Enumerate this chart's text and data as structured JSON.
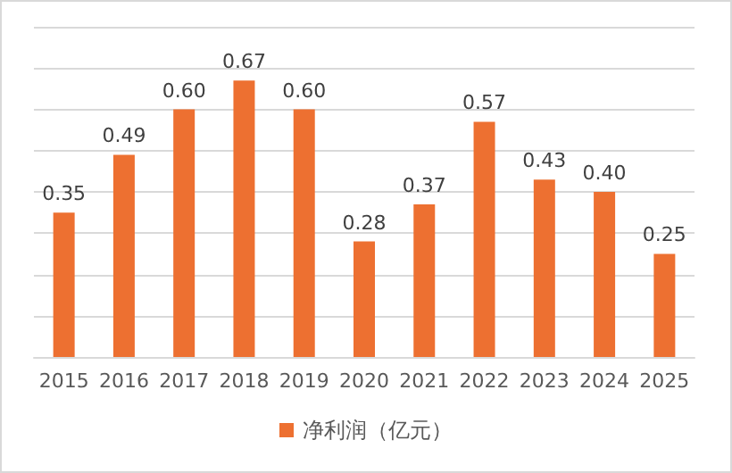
{
  "chart_data": {
    "type": "bar",
    "categories": [
      "2015",
      "2016",
      "2017",
      "2018",
      "2019",
      "2020",
      "2021",
      "2022",
      "2023",
      "2024",
      "2025"
    ],
    "series": [
      {
        "name": "净利润（亿元）",
        "color": "#ed7031",
        "values": [
          0.35,
          0.49,
          0.6,
          0.67,
          0.6,
          0.28,
          0.37,
          0.57,
          0.43,
          0.4,
          0.25
        ],
        "value_labels": [
          "0.35",
          "0.49",
          "0.60",
          "0.67",
          "0.60",
          "0.28",
          "0.37",
          "0.57",
          "0.43",
          "0.40",
          "0.25"
        ]
      }
    ],
    "ylim": [
      0,
      0.8
    ],
    "yticks": [
      {
        "value": 0,
        "label": null
      },
      {
        "value": 0.1,
        "label": null
      },
      {
        "value": 0.2,
        "label": null
      },
      {
        "value": 0.3,
        "label": null
      },
      {
        "value": 0.4,
        "label": null
      },
      {
        "value": 0.5,
        "label": null
      },
      {
        "value": 0.6,
        "label": null
      },
      {
        "value": 0.7,
        "label": null
      },
      {
        "value": 0.8,
        "label": null
      }
    ],
    "grid": "y",
    "legend": "bottom",
    "tick_labels": "x"
  }
}
